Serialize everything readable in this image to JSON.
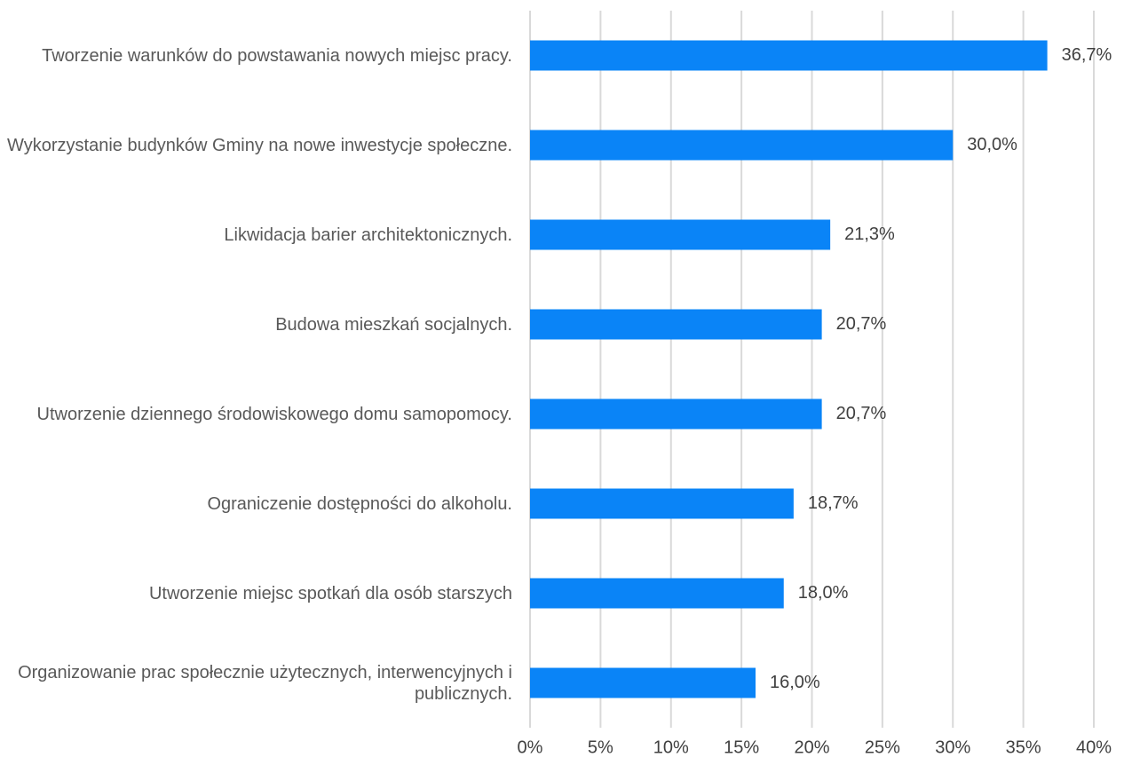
{
  "chart_data": {
    "type": "bar",
    "orientation": "horizontal",
    "categories": [
      "Tworzenie warunków do powstawania nowych miejsc pracy.",
      "Wykorzystanie budynków Gminy na nowe inwestycje społeczne.",
      "Likwidacja barier architektonicznych.",
      "Budowa mieszkań socjalnych.",
      "Utworzenie dziennego środowiskowego domu samopomocy.",
      "Ograniczenie dostępności do alkoholu.",
      "Utworzenie miejsc spotkań dla osób starszych",
      "Organizowanie prac społecznie użytecznych, interwencyjnych i publicznych."
    ],
    "values": [
      36.7,
      30.0,
      21.3,
      20.7,
      20.7,
      18.7,
      18.0,
      16.0
    ],
    "value_labels": [
      "36,7%",
      "30,0%",
      "21,3%",
      "20,7%",
      "20,7%",
      "18,7%",
      "18,0%",
      "16,0%"
    ],
    "color": "#0a84f7",
    "xlim": [
      0,
      40
    ],
    "xticks": [
      {
        "value": 0,
        "label": "0%"
      },
      {
        "value": 5,
        "label": "5%"
      },
      {
        "value": 10,
        "label": "10%"
      },
      {
        "value": 15,
        "label": "15%"
      },
      {
        "value": 20,
        "label": "20%"
      },
      {
        "value": 25,
        "label": "25%"
      },
      {
        "value": 30,
        "label": "30%"
      },
      {
        "value": 35,
        "label": "35%"
      },
      {
        "value": 40,
        "label": "40%"
      }
    ],
    "grid": true
  }
}
